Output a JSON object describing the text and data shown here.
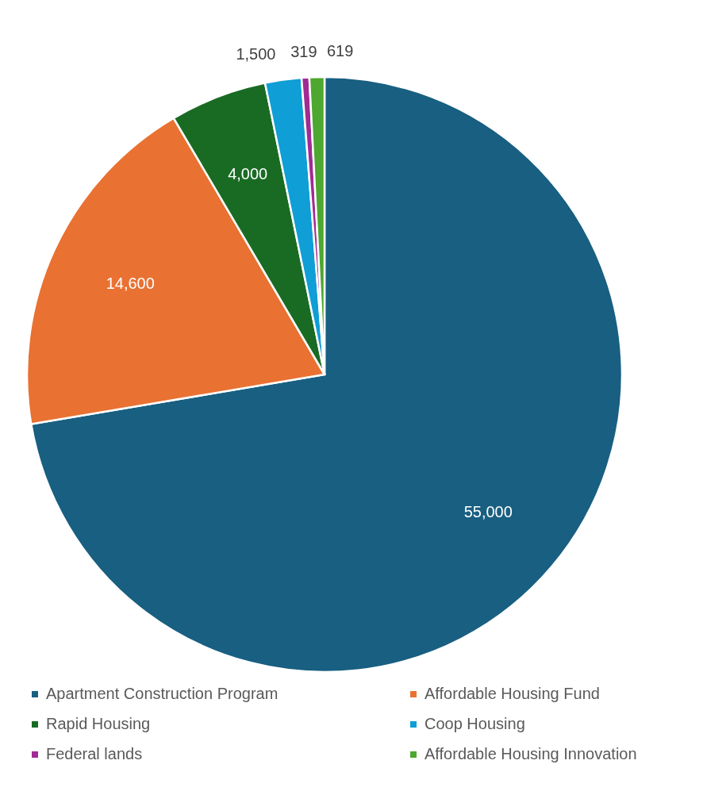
{
  "chart_data": {
    "type": "pie",
    "categories": [
      "Apartment Construction Program",
      "Affordable Housing Fund",
      "Rapid Housing",
      "Coop Housing",
      "Federal lands",
      "Affordable Housing Innovation"
    ],
    "values": [
      55000,
      14600,
      4000,
      1500,
      319,
      619
    ],
    "colors": [
      "#185f81",
      "#e97132",
      "#196b24",
      "#0f9ed5",
      "#a02b93",
      "#4ea72e"
    ],
    "value_labels": [
      "55,000",
      "14,600",
      "4,000",
      "1,500",
      "319",
      "619"
    ],
    "legend": "bottom"
  }
}
